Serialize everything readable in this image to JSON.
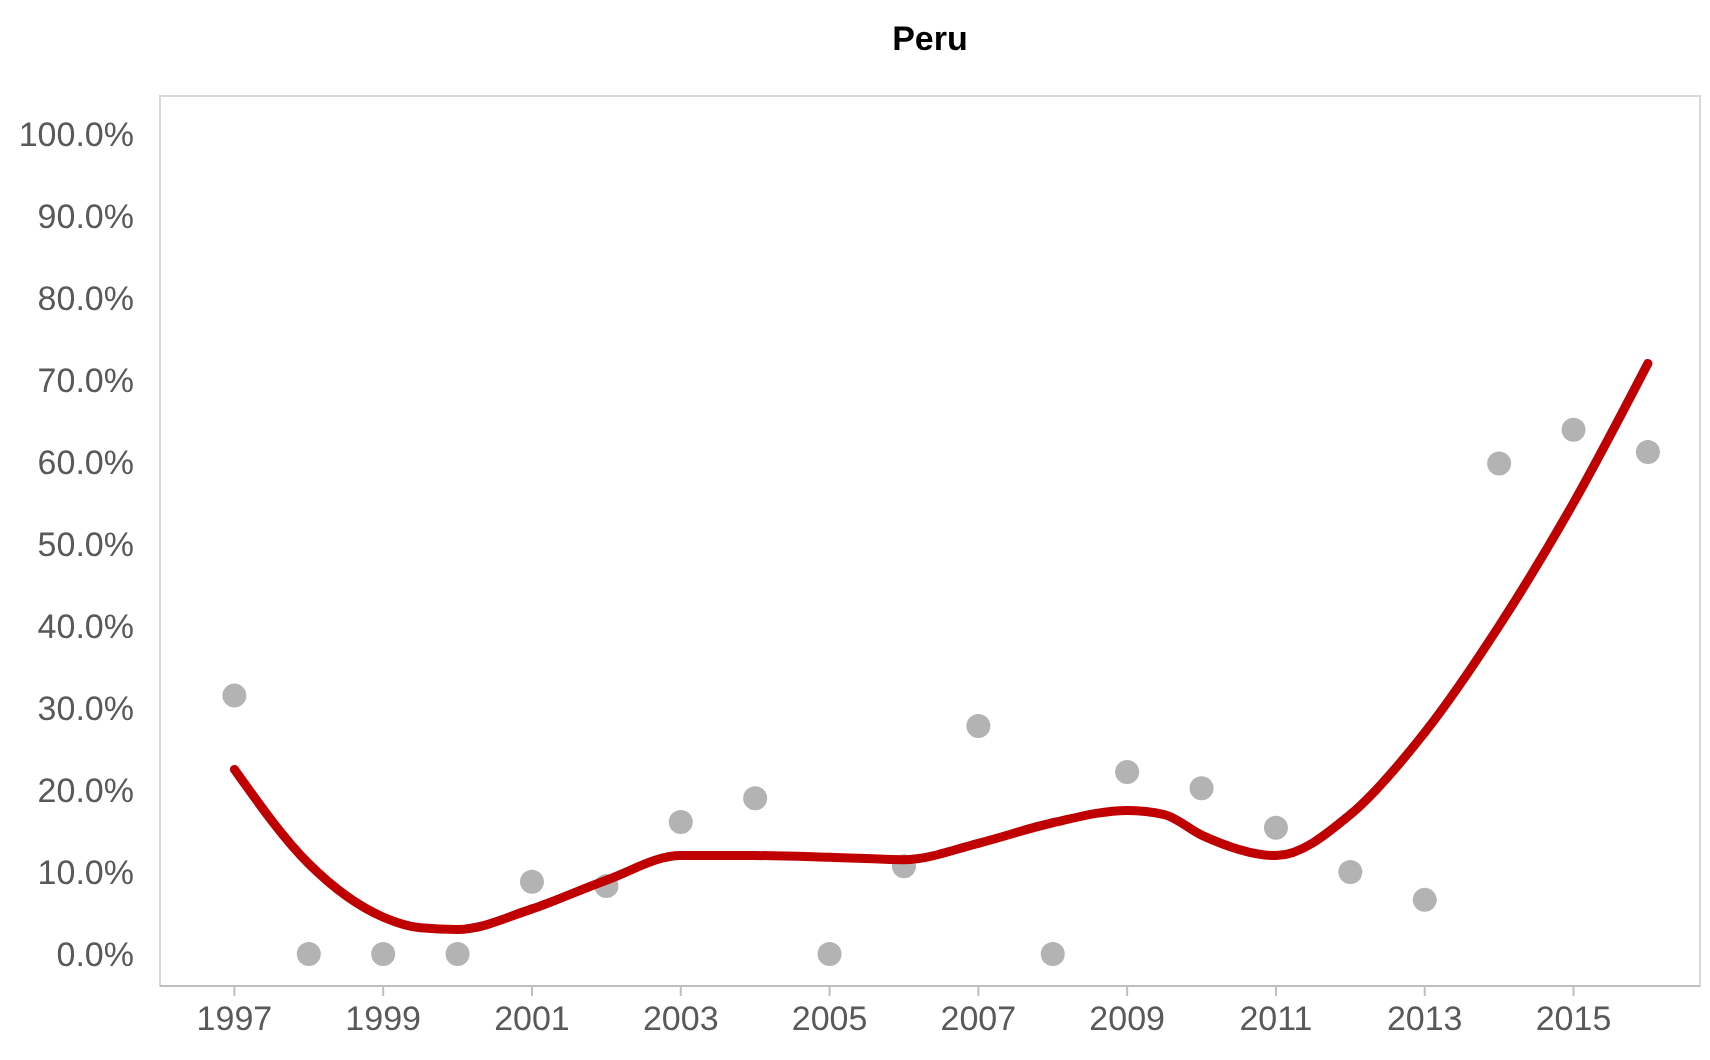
{
  "chart_data": {
    "type": "scatter",
    "title": "Peru",
    "xlim": [
      1996,
      2016.7
    ],
    "xticks": [
      1997,
      1999,
      2001,
      2003,
      2005,
      2007,
      2009,
      2011,
      2013,
      2015
    ],
    "ylim": [
      -3.9,
      104.6
    ],
    "yticks": [
      {
        "value": 0,
        "label": "0.0%"
      },
      {
        "value": 10,
        "label": "10.0%"
      },
      {
        "value": 20,
        "label": "20.0%"
      },
      {
        "value": 30,
        "label": "30.0%"
      },
      {
        "value": 40,
        "label": "40.0%"
      },
      {
        "value": 50,
        "label": "50.0%"
      },
      {
        "value": 60,
        "label": "60.0%"
      },
      {
        "value": 70,
        "label": "70.0%"
      },
      {
        "value": 80,
        "label": "80.0%"
      },
      {
        "value": 90,
        "label": "90.0%"
      },
      {
        "value": 100,
        "label": "100.0%"
      }
    ],
    "grid": false,
    "marker": "circle",
    "series": [
      {
        "color": "#b3b3b3",
        "x": [
          1997,
          1998,
          1999,
          2000,
          2001,
          2002,
          2003,
          2004,
          2005,
          2006,
          2007,
          2008,
          2009,
          2010,
          2011,
          2012,
          2013,
          2014,
          2015,
          2016
        ],
        "values": [
          31.5,
          0,
          0,
          0,
          8.8,
          8.3,
          16.1,
          19,
          0,
          10.7,
          27.8,
          0,
          22.2,
          20.2,
          15.4,
          10,
          6.6,
          59.8,
          63.9,
          61.2
        ]
      },
      {
        "type": "line",
        "color": "#c00000",
        "marker": "none",
        "line_style": "solid",
        "x": [
          1997,
          1998,
          1999,
          1999.5,
          2000,
          2001,
          2002,
          2003,
          2004,
          2005,
          2006,
          2007,
          2008,
          2009,
          2009.5,
          2010,
          2011,
          2012,
          2013,
          2014,
          2015,
          2016
        ],
        "values": [
          22.5,
          11,
          4.5,
          3.2,
          3,
          5.5,
          9,
          12,
          12,
          11.8,
          11.5,
          13.5,
          16,
          17.5,
          17,
          14.5,
          12,
          17,
          27,
          40,
          55,
          72
        ]
      }
    ]
  }
}
